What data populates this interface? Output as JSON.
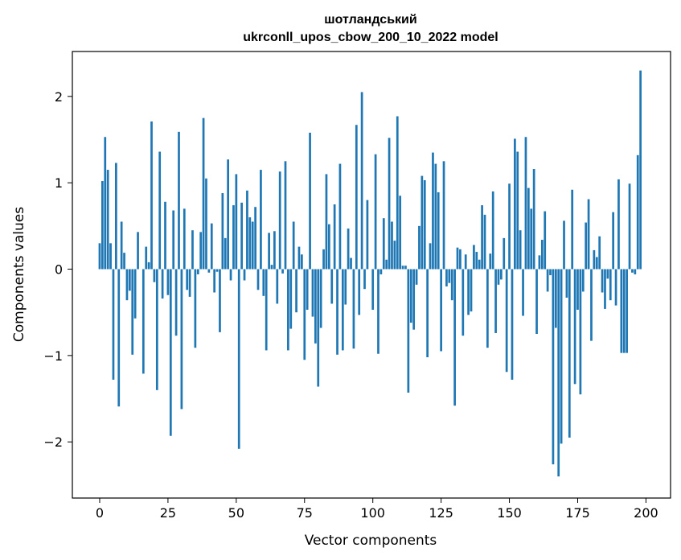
{
  "chart_data": {
    "type": "bar",
    "title_line1": "шотландський",
    "title_line2": "ukrconll_upos_cbow_200_10_2022 model",
    "xlabel": "Vector components",
    "ylabel": "Components values",
    "xlim": [
      -10,
      209
    ],
    "ylim": [
      -2.65,
      2.52
    ],
    "xticks": [
      0,
      25,
      50,
      75,
      100,
      125,
      150,
      175,
      200
    ],
    "xtick_labels": [
      "0",
      "25",
      "50",
      "75",
      "100",
      "125",
      "150",
      "175",
      "200"
    ],
    "yticks": [
      -2,
      -1,
      0,
      1,
      2
    ],
    "ytick_labels": [
      "−2",
      "−1",
      "0",
      "1",
      "2"
    ],
    "bar_color": "#1f77b4",
    "grid": false,
    "values": [
      0.3,
      1.02,
      1.53,
      1.15,
      0.3,
      -1.28,
      1.23,
      -1.59,
      0.55,
      0.19,
      -0.36,
      -0.25,
      -0.99,
      -0.57,
      0.43,
      0.0,
      -1.21,
      0.26,
      0.08,
      1.71,
      -0.15,
      -1.4,
      1.36,
      -0.34,
      0.78,
      -0.3,
      -1.93,
      0.68,
      -0.77,
      1.59,
      -1.62,
      0.7,
      -0.24,
      -0.32,
      0.45,
      -0.91,
      -0.06,
      0.43,
      1.75,
      1.05,
      -0.04,
      0.53,
      -0.27,
      -0.03,
      -0.73,
      0.88,
      0.36,
      1.27,
      -0.13,
      0.74,
      1.1,
      -2.08,
      0.77,
      -0.13,
      0.91,
      0.6,
      0.55,
      0.72,
      -0.24,
      1.15,
      -0.31,
      -0.94,
      0.42,
      0.05,
      0.44,
      -0.4,
      1.13,
      -0.05,
      1.25,
      -0.94,
      -0.69,
      0.55,
      -0.5,
      0.26,
      0.17,
      -1.05,
      -0.47,
      1.58,
      -0.55,
      -0.86,
      -1.36,
      -0.68,
      0.23,
      1.1,
      0.52,
      -0.4,
      0.75,
      -0.99,
      1.22,
      -0.94,
      -0.41,
      0.47,
      0.13,
      -0.92,
      1.67,
      -0.53,
      2.05,
      -0.23,
      0.8,
      0.0,
      -0.47,
      1.33,
      -0.98,
      -0.06,
      0.59,
      0.11,
      1.52,
      0.55,
      0.33,
      1.77,
      0.85,
      0.04,
      0.04,
      -1.43,
      -0.62,
      -0.7,
      -0.18,
      0.5,
      1.08,
      1.03,
      -1.02,
      0.3,
      1.35,
      1.22,
      0.89,
      -0.95,
      1.25,
      -0.2,
      -0.16,
      -0.36,
      -1.58,
      0.25,
      0.23,
      -0.77,
      0.17,
      -0.53,
      -0.49,
      0.28,
      0.2,
      0.11,
      0.74,
      0.63,
      -0.91,
      0.18,
      0.9,
      -0.74,
      -0.18,
      -0.12,
      0.36,
      -1.19,
      0.99,
      -1.28,
      1.51,
      1.36,
      0.45,
      -0.54,
      1.53,
      0.94,
      0.7,
      1.16,
      -0.75,
      0.16,
      0.34,
      0.67,
      -0.26,
      -0.07,
      -2.26,
      -0.68,
      -2.4,
      -2.02,
      0.56,
      -0.33,
      -1.95,
      0.92,
      -1.33,
      -0.47,
      -1.45,
      -0.26,
      0.54,
      0.81,
      -0.83,
      0.22,
      0.14,
      0.38,
      -0.27,
      -0.46,
      -0.11,
      -0.36,
      0.66,
      -0.42,
      1.04,
      -0.97,
      -0.97,
      -0.97,
      0.99,
      -0.04,
      -0.06,
      1.32,
      2.3
    ]
  }
}
